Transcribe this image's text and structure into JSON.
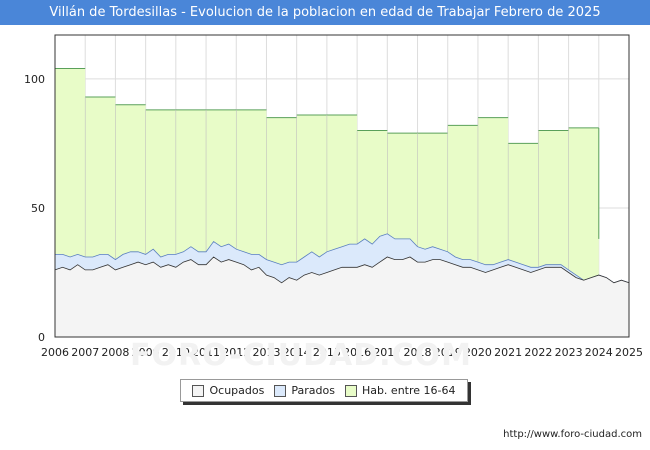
{
  "title": "Villán de Tordesillas - Evolucion de la poblacion en edad de Trabajar Febrero de 2025",
  "watermark": "FORO-CIUDAD.COM",
  "footer_url": "http://www.foro-ciudad.com",
  "legend": {
    "ocupados": "Ocupados",
    "parados": "Parados",
    "hab": "Hab. entre 16-64"
  },
  "colors": {
    "hab_fill": "#e8fcc8",
    "hab_line": "#5aa05a",
    "parados_fill": "#dbe9fb",
    "parados_line": "#5a7fc0",
    "ocupados_fill": "#f4f4f4",
    "ocupados_line": "#333333",
    "title_bg": "#4a86d8"
  },
  "chart_data": {
    "type": "area",
    "title": "Villán de Tordesillas - Evolucion de la poblacion en edad de Trabajar Febrero de 2025",
    "xlim": [
      2006,
      2025
    ],
    "ylim": [
      0,
      117
    ],
    "x_ticks": [
      2006,
      2007,
      2008,
      2009,
      2010,
      2011,
      2012,
      2013,
      2014,
      2015,
      2016,
      2017,
      2018,
      2019,
      2020,
      2021,
      2022,
      2023,
      2024,
      2025
    ],
    "y_ticks": [
      0,
      50,
      100
    ],
    "hab_16_64": {
      "name": "Hab. entre 16-64",
      "steps": [
        {
          "from": 2006,
          "to": 2007,
          "value": 104
        },
        {
          "from": 2007,
          "to": 2008,
          "value": 93
        },
        {
          "from": 2008,
          "to": 2009,
          "value": 90
        },
        {
          "from": 2009,
          "to": 2010,
          "value": 88
        },
        {
          "from": 2010,
          "to": 2011,
          "value": 88
        },
        {
          "from": 2011,
          "to": 2012,
          "value": 88
        },
        {
          "from": 2012,
          "to": 2013,
          "value": 88
        },
        {
          "from": 2013,
          "to": 2014,
          "value": 85
        },
        {
          "from": 2014,
          "to": 2015,
          "value": 86
        },
        {
          "from": 2015,
          "to": 2016,
          "value": 86
        },
        {
          "from": 2016,
          "to": 2017,
          "value": 80
        },
        {
          "from": 2017,
          "to": 2018,
          "value": 79
        },
        {
          "from": 2018,
          "to": 2019,
          "value": 79
        },
        {
          "from": 2019,
          "to": 2020,
          "value": 82
        },
        {
          "from": 2020,
          "to": 2021,
          "value": 85
        },
        {
          "from": 2021,
          "to": 2022,
          "value": 75
        },
        {
          "from": 2022,
          "to": 2023,
          "value": 80
        },
        {
          "from": 2023,
          "to": 2024,
          "value": 81
        }
      ]
    },
    "monthly_x": [
      2006.0,
      2006.25,
      2006.5,
      2006.75,
      2007.0,
      2007.25,
      2007.5,
      2007.75,
      2008.0,
      2008.25,
      2008.5,
      2008.75,
      2009.0,
      2009.25,
      2009.5,
      2009.75,
      2010.0,
      2010.25,
      2010.5,
      2010.75,
      2011.0,
      2011.25,
      2011.5,
      2011.75,
      2012.0,
      2012.25,
      2012.5,
      2012.75,
      2013.0,
      2013.25,
      2013.5,
      2013.75,
      2014.0,
      2014.25,
      2014.5,
      2014.75,
      2015.0,
      2015.25,
      2015.5,
      2015.75,
      2016.0,
      2016.25,
      2016.5,
      2016.75,
      2017.0,
      2017.25,
      2017.5,
      2017.75,
      2018.0,
      2018.25,
      2018.5,
      2018.75,
      2019.0,
      2019.25,
      2019.5,
      2019.75,
      2020.0,
      2020.25,
      2020.5,
      2020.75,
      2021.0,
      2021.25,
      2021.5,
      2021.75,
      2022.0,
      2022.25,
      2022.5,
      2022.75,
      2023.0,
      2023.25,
      2023.5,
      2023.75,
      2024.0,
      2024.25,
      2024.5,
      2024.75,
      2025.0
    ],
    "ocupados": [
      26,
      27,
      26,
      28,
      26,
      26,
      27,
      28,
      26,
      27,
      28,
      29,
      28,
      29,
      27,
      28,
      27,
      29,
      30,
      28,
      28,
      31,
      29,
      30,
      29,
      28,
      26,
      27,
      24,
      23,
      21,
      23,
      22,
      24,
      25,
      24,
      25,
      26,
      27,
      27,
      27,
      28,
      27,
      29,
      31,
      30,
      30,
      31,
      29,
      29,
      30,
      30,
      29,
      28,
      27,
      27,
      26,
      25,
      26,
      27,
      28,
      27,
      26,
      25,
      26,
      27,
      27,
      27,
      25,
      23,
      22,
      23,
      24,
      23,
      21,
      22,
      21
    ],
    "parados": [
      6,
      5,
      5,
      4,
      5,
      5,
      5,
      4,
      4,
      5,
      5,
      4,
      4,
      5,
      4,
      4,
      5,
      4,
      5,
      5,
      5,
      6,
      6,
      6,
      5,
      5,
      6,
      5,
      6,
      6,
      7,
      6,
      7,
      7,
      8,
      7,
      8,
      8,
      8,
      9,
      9,
      10,
      9,
      10,
      9,
      8,
      8,
      7,
      6,
      5,
      5,
      4,
      4,
      3,
      3,
      3,
      3,
      3,
      2,
      2,
      2,
      2,
      2,
      2,
      1,
      1,
      1,
      1,
      1,
      1,
      0,
      0,
      0,
      0,
      0,
      0,
      0
    ]
  }
}
